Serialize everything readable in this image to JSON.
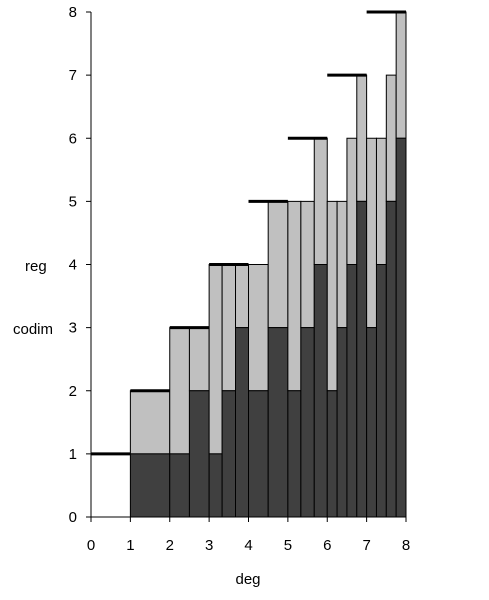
{
  "chart_data": {
    "type": "bar",
    "xlabel": "deg",
    "ylabels": [
      "reg",
      "codim"
    ],
    "xlim": [
      0,
      8
    ],
    "ylim": [
      0,
      8
    ],
    "xticks": [
      0,
      1,
      2,
      3,
      4,
      5,
      6,
      7,
      8
    ],
    "yticks": [
      0,
      1,
      2,
      3,
      4,
      5,
      6,
      7,
      8
    ],
    "colors": {
      "reg": "#c0c0c0",
      "codim": "#404040",
      "cap": "#000000",
      "edge": "#000000"
    },
    "series": [
      {
        "name": "codim",
        "kind": "stacked-bottom"
      },
      {
        "name": "reg",
        "kind": "stacked-top"
      }
    ],
    "bars": [
      {
        "x0": 1.0,
        "x1": 2.0,
        "codim": 1,
        "reg": 2
      },
      {
        "x0": 2.0,
        "x1": 2.5,
        "codim": 1,
        "reg": 3
      },
      {
        "x0": 2.5,
        "x1": 3.0,
        "codim": 2,
        "reg": 3
      },
      {
        "x0": 3.0,
        "x1": 3.33,
        "codim": 1,
        "reg": 4
      },
      {
        "x0": 3.33,
        "x1": 3.67,
        "codim": 2,
        "reg": 4
      },
      {
        "x0": 3.67,
        "x1": 4.0,
        "codim": 3,
        "reg": 4
      },
      {
        "x0": 4.0,
        "x1": 4.5,
        "codim": 2,
        "reg": 4
      },
      {
        "x0": 4.5,
        "x1": 5.0,
        "codim": 3,
        "reg": 5
      },
      {
        "x0": 5.0,
        "x1": 5.33,
        "codim": 2,
        "reg": 5
      },
      {
        "x0": 5.33,
        "x1": 5.67,
        "codim": 3,
        "reg": 5
      },
      {
        "x0": 5.67,
        "x1": 6.0,
        "codim": 4,
        "reg": 6
      },
      {
        "x0": 6.0,
        "x1": 6.25,
        "codim": 2,
        "reg": 5
      },
      {
        "x0": 6.25,
        "x1": 6.5,
        "codim": 3,
        "reg": 5
      },
      {
        "x0": 6.5,
        "x1": 6.75,
        "codim": 4,
        "reg": 6
      },
      {
        "x0": 6.75,
        "x1": 7.0,
        "codim": 5,
        "reg": 7
      },
      {
        "x0": 7.0,
        "x1": 7.25,
        "codim": 3,
        "reg": 6
      },
      {
        "x0": 7.25,
        "x1": 7.5,
        "codim": 4,
        "reg": 6
      },
      {
        "x0": 7.5,
        "x1": 7.75,
        "codim": 5,
        "reg": 7
      },
      {
        "x0": 7.75,
        "x1": 8.0,
        "codim": 6,
        "reg": 8
      }
    ],
    "caps": [
      {
        "x0": 0.0,
        "x1": 1.0,
        "y": 1
      },
      {
        "x0": 1.0,
        "x1": 2.0,
        "y": 2
      },
      {
        "x0": 2.0,
        "x1": 3.0,
        "y": 3
      },
      {
        "x0": 3.0,
        "x1": 4.0,
        "y": 4
      },
      {
        "x0": 4.0,
        "x1": 5.0,
        "y": 5
      },
      {
        "x0": 5.0,
        "x1": 6.0,
        "y": 6
      },
      {
        "x0": 6.0,
        "x1": 7.0,
        "y": 7
      },
      {
        "x0": 7.0,
        "x1": 8.0,
        "y": 8
      }
    ],
    "grid": false,
    "legend": "none"
  }
}
